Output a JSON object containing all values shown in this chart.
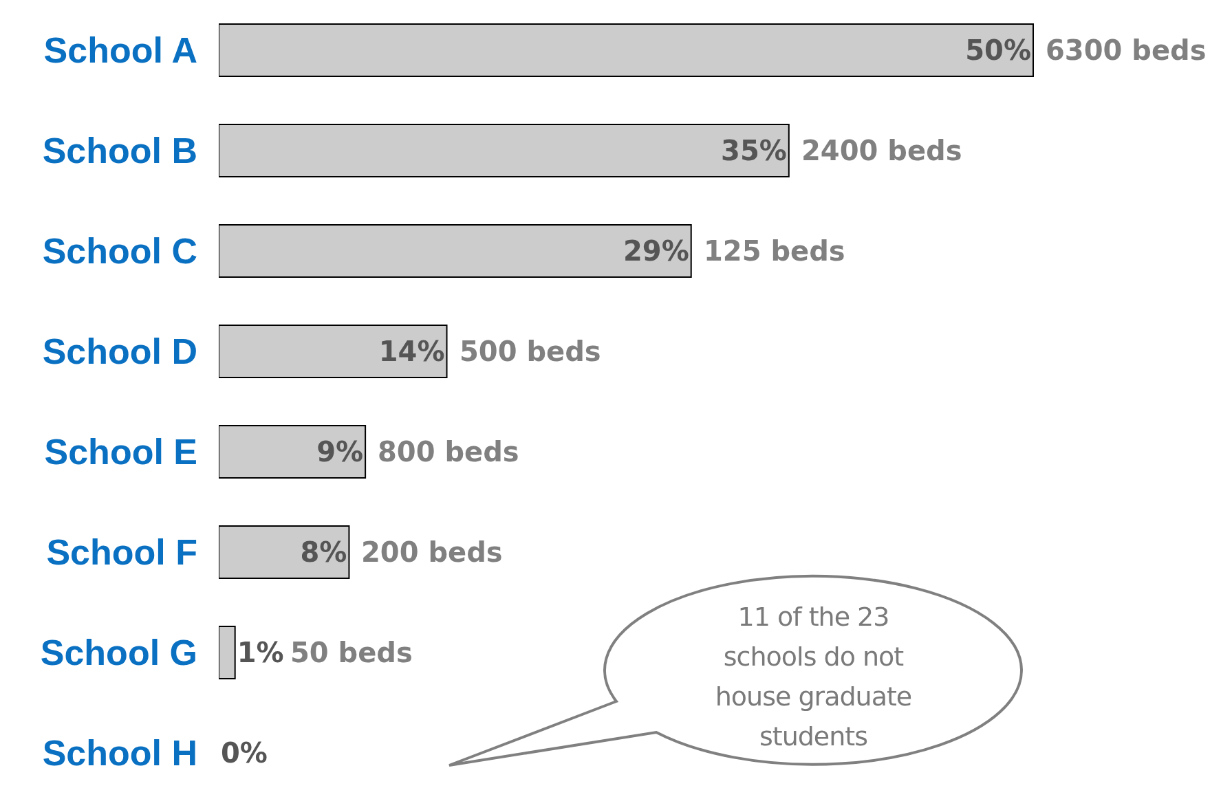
{
  "chart_data": {
    "type": "bar",
    "orientation": "horizontal",
    "categories": [
      "School A",
      "School B",
      "School C",
      "School D",
      "School E",
      "School F",
      "School G",
      "School H"
    ],
    "values": [
      50,
      35,
      29,
      14,
      9,
      8,
      1,
      0
    ],
    "value_labels": [
      "50%",
      "35%",
      "29%",
      "14%",
      "9%",
      "8%",
      "1%",
      "0%"
    ],
    "color": "#cccccc",
    "annotations": [
      {
        "text": "6300 beds",
        "x": 50,
        "y": "School A"
      },
      {
        "text": "2400 beds",
        "x": 35,
        "y": "School B"
      },
      {
        "text": "125 beds",
        "x": 29,
        "y": "School C"
      },
      {
        "text": "500 beds",
        "x": 14,
        "y": "School D"
      },
      {
        "text": "800 beds",
        "x": 9,
        "y": "School E"
      },
      {
        "text": "200 beds",
        "x": 8,
        "y": "School F"
      },
      {
        "text": "50 beds",
        "x": 1,
        "y": "School G"
      },
      "11 of the 23 schools do not house graduate students"
    ],
    "grid": false
  }
}
